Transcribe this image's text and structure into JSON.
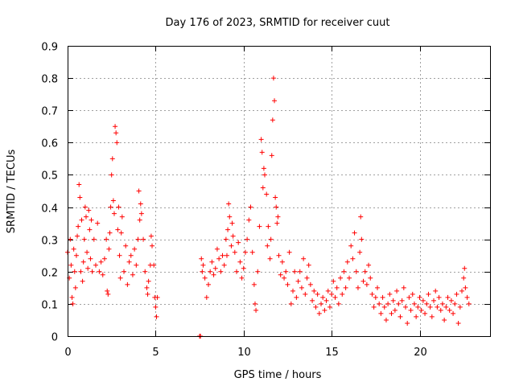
{
  "chart_data": {
    "type": "scatter",
    "title": "Day 176 of 2023, SRMTID for receiver cuut",
    "xlabel": "GPS time / hours",
    "ylabel": "SRMTID / TECUs",
    "xlim": [
      0,
      24
    ],
    "ylim": [
      0,
      0.9
    ],
    "xticks": [
      0,
      5,
      10,
      15,
      20
    ],
    "xtick_labels": [
      "0",
      "5",
      "10",
      "15",
      "20"
    ],
    "yticks": [
      0,
      0.1,
      0.2,
      0.3,
      0.4,
      0.5,
      0.6,
      0.7,
      0.8,
      0.9
    ],
    "ytick_labels": [
      "0",
      "0.1",
      "0.2",
      "0.3",
      "0.4",
      "0.5",
      "0.6",
      "0.7",
      "0.8",
      "0.9"
    ],
    "grid": true,
    "marker": "+",
    "color": "#ff0000",
    "series": [
      {
        "name": "SRMTID",
        "points": [
          [
            0.0,
            0.26
          ],
          [
            0.1,
            0.18
          ],
          [
            0.15,
            0.3
          ],
          [
            0.2,
            0.22
          ],
          [
            0.25,
            0.12
          ],
          [
            0.3,
            0.1
          ],
          [
            0.35,
            0.27
          ],
          [
            0.4,
            0.2
          ],
          [
            0.45,
            0.15
          ],
          [
            0.5,
            0.25
          ],
          [
            0.55,
            0.31
          ],
          [
            0.6,
            0.34
          ],
          [
            0.65,
            0.47
          ],
          [
            0.7,
            0.43
          ],
          [
            0.75,
            0.2
          ],
          [
            0.8,
            0.36
          ],
          [
            0.85,
            0.17
          ],
          [
            0.9,
            0.23
          ],
          [
            0.95,
            0.3
          ],
          [
            1.0,
            0.4
          ],
          [
            1.05,
            0.37
          ],
          [
            1.1,
            0.26
          ],
          [
            1.15,
            0.21
          ],
          [
            1.2,
            0.39
          ],
          [
            1.25,
            0.33
          ],
          [
            1.3,
            0.24
          ],
          [
            1.35,
            0.36
          ],
          [
            1.4,
            0.2
          ],
          [
            1.5,
            0.3
          ],
          [
            1.6,
            0.22
          ],
          [
            1.7,
            0.35
          ],
          [
            1.8,
            0.2
          ],
          [
            1.9,
            0.23
          ],
          [
            2.0,
            0.19
          ],
          [
            2.1,
            0.24
          ],
          [
            2.2,
            0.3
          ],
          [
            2.25,
            0.14
          ],
          [
            2.3,
            0.13
          ],
          [
            2.35,
            0.27
          ],
          [
            2.4,
            0.32
          ],
          [
            2.45,
            0.4
          ],
          [
            2.5,
            0.5
          ],
          [
            2.55,
            0.55
          ],
          [
            2.6,
            0.42
          ],
          [
            2.65,
            0.38
          ],
          [
            2.7,
            0.65
          ],
          [
            2.75,
            0.63
          ],
          [
            2.8,
            0.6
          ],
          [
            2.85,
            0.33
          ],
          [
            2.9,
            0.4
          ],
          [
            2.95,
            0.25
          ],
          [
            3.0,
            0.18
          ],
          [
            3.05,
            0.32
          ],
          [
            3.1,
            0.37
          ],
          [
            3.2,
            0.2
          ],
          [
            3.3,
            0.28
          ],
          [
            3.4,
            0.16
          ],
          [
            3.5,
            0.23
          ],
          [
            3.6,
            0.25
          ],
          [
            3.7,
            0.19
          ],
          [
            3.8,
            0.27
          ],
          [
            3.9,
            0.22
          ],
          [
            4.0,
            0.3
          ],
          [
            4.05,
            0.45
          ],
          [
            4.1,
            0.36
          ],
          [
            4.15,
            0.41
          ],
          [
            4.2,
            0.38
          ],
          [
            4.3,
            0.3
          ],
          [
            4.4,
            0.2
          ],
          [
            4.5,
            0.15
          ],
          [
            4.55,
            0.13
          ],
          [
            4.6,
            0.17
          ],
          [
            4.7,
            0.22
          ],
          [
            4.75,
            0.31
          ],
          [
            4.8,
            0.28
          ],
          [
            4.9,
            0.22
          ],
          [
            4.95,
            0.12
          ],
          [
            5.0,
            0.09
          ],
          [
            5.05,
            0.06
          ],
          [
            5.1,
            0.12
          ],
          [
            7.5,
            0.0
          ],
          [
            7.55,
            0.0
          ],
          [
            7.6,
            0.24
          ],
          [
            7.65,
            0.2
          ],
          [
            7.7,
            0.22
          ],
          [
            7.8,
            0.18
          ],
          [
            7.9,
            0.12
          ],
          [
            8.0,
            0.16
          ],
          [
            8.1,
            0.2
          ],
          [
            8.2,
            0.23
          ],
          [
            8.3,
            0.19
          ],
          [
            8.4,
            0.21
          ],
          [
            8.5,
            0.27
          ],
          [
            8.6,
            0.24
          ],
          [
            8.7,
            0.2
          ],
          [
            8.8,
            0.25
          ],
          [
            8.9,
            0.22
          ],
          [
            9.0,
            0.3
          ],
          [
            9.05,
            0.25
          ],
          [
            9.1,
            0.33
          ],
          [
            9.15,
            0.41
          ],
          [
            9.2,
            0.37
          ],
          [
            9.3,
            0.28
          ],
          [
            9.35,
            0.35
          ],
          [
            9.4,
            0.31
          ],
          [
            9.5,
            0.26
          ],
          [
            9.6,
            0.2
          ],
          [
            9.7,
            0.29
          ],
          [
            9.8,
            0.23
          ],
          [
            9.9,
            0.18
          ],
          [
            10.0,
            0.21
          ],
          [
            10.1,
            0.26
          ],
          [
            10.2,
            0.3
          ],
          [
            10.3,
            0.36
          ],
          [
            10.4,
            0.4
          ],
          [
            10.5,
            0.26
          ],
          [
            10.6,
            0.16
          ],
          [
            10.65,
            0.1
          ],
          [
            10.7,
            0.08
          ],
          [
            10.8,
            0.2
          ],
          [
            10.9,
            0.34
          ],
          [
            11.0,
            0.61
          ],
          [
            11.05,
            0.57
          ],
          [
            11.1,
            0.46
          ],
          [
            11.15,
            0.52
          ],
          [
            11.2,
            0.5
          ],
          [
            11.3,
            0.44
          ],
          [
            11.35,
            0.28
          ],
          [
            11.4,
            0.34
          ],
          [
            11.5,
            0.24
          ],
          [
            11.55,
            0.3
          ],
          [
            11.6,
            0.56
          ],
          [
            11.65,
            0.67
          ],
          [
            11.7,
            0.8
          ],
          [
            11.75,
            0.73
          ],
          [
            11.8,
            0.43
          ],
          [
            11.85,
            0.4
          ],
          [
            11.9,
            0.35
          ],
          [
            11.95,
            0.37
          ],
          [
            12.0,
            0.25
          ],
          [
            12.1,
            0.19
          ],
          [
            12.2,
            0.23
          ],
          [
            12.3,
            0.18
          ],
          [
            12.4,
            0.2
          ],
          [
            12.5,
            0.16
          ],
          [
            12.6,
            0.26
          ],
          [
            12.7,
            0.1
          ],
          [
            12.8,
            0.14
          ],
          [
            12.9,
            0.2
          ],
          [
            13.0,
            0.12
          ],
          [
            13.1,
            0.17
          ],
          [
            13.2,
            0.2
          ],
          [
            13.3,
            0.15
          ],
          [
            13.4,
            0.24
          ],
          [
            13.5,
            0.13
          ],
          [
            13.6,
            0.18
          ],
          [
            13.7,
            0.22
          ],
          [
            13.8,
            0.16
          ],
          [
            13.9,
            0.11
          ],
          [
            14.0,
            0.14
          ],
          [
            14.1,
            0.09
          ],
          [
            14.2,
            0.13
          ],
          [
            14.3,
            0.07
          ],
          [
            14.4,
            0.1
          ],
          [
            14.5,
            0.12
          ],
          [
            14.6,
            0.08
          ],
          [
            14.7,
            0.11
          ],
          [
            14.8,
            0.14
          ],
          [
            14.9,
            0.09
          ],
          [
            15.0,
            0.13
          ],
          [
            15.1,
            0.17
          ],
          [
            15.2,
            0.12
          ],
          [
            15.3,
            0.15
          ],
          [
            15.4,
            0.1
          ],
          [
            15.5,
            0.18
          ],
          [
            15.6,
            0.13
          ],
          [
            15.7,
            0.2
          ],
          [
            15.8,
            0.15
          ],
          [
            15.9,
            0.23
          ],
          [
            16.0,
            0.18
          ],
          [
            16.1,
            0.28
          ],
          [
            16.2,
            0.24
          ],
          [
            16.3,
            0.32
          ],
          [
            16.4,
            0.2
          ],
          [
            16.5,
            0.15
          ],
          [
            16.6,
            0.26
          ],
          [
            16.65,
            0.37
          ],
          [
            16.7,
            0.3
          ],
          [
            16.8,
            0.17
          ],
          [
            16.9,
            0.2
          ],
          [
            17.0,
            0.16
          ],
          [
            17.1,
            0.22
          ],
          [
            17.2,
            0.18
          ],
          [
            17.3,
            0.13
          ],
          [
            17.4,
            0.09
          ],
          [
            17.5,
            0.12
          ],
          [
            17.6,
            0.15
          ],
          [
            17.7,
            0.1
          ],
          [
            17.8,
            0.07
          ],
          [
            17.9,
            0.12
          ],
          [
            18.0,
            0.09
          ],
          [
            18.1,
            0.05
          ],
          [
            18.2,
            0.1
          ],
          [
            18.3,
            0.13
          ],
          [
            18.4,
            0.07
          ],
          [
            18.5,
            0.11
          ],
          [
            18.6,
            0.08
          ],
          [
            18.7,
            0.14
          ],
          [
            18.8,
            0.1
          ],
          [
            18.9,
            0.06
          ],
          [
            19.0,
            0.11
          ],
          [
            19.1,
            0.15
          ],
          [
            19.2,
            0.09
          ],
          [
            19.3,
            0.04
          ],
          [
            19.4,
            0.12
          ],
          [
            19.5,
            0.08
          ],
          [
            19.6,
            0.13
          ],
          [
            19.7,
            0.1
          ],
          [
            19.8,
            0.06
          ],
          [
            19.9,
            0.09
          ],
          [
            20.0,
            0.12
          ],
          [
            20.1,
            0.08
          ],
          [
            20.2,
            0.11
          ],
          [
            20.3,
            0.07
          ],
          [
            20.4,
            0.1
          ],
          [
            20.5,
            0.13
          ],
          [
            20.6,
            0.09
          ],
          [
            20.7,
            0.06
          ],
          [
            20.8,
            0.11
          ],
          [
            20.9,
            0.14
          ],
          [
            21.0,
            0.09
          ],
          [
            21.1,
            0.12
          ],
          [
            21.2,
            0.08
          ],
          [
            21.3,
            0.1
          ],
          [
            21.4,
            0.05
          ],
          [
            21.5,
            0.09
          ],
          [
            21.6,
            0.12
          ],
          [
            21.7,
            0.08
          ],
          [
            21.8,
            0.11
          ],
          [
            21.9,
            0.07
          ],
          [
            22.0,
            0.1
          ],
          [
            22.1,
            0.13
          ],
          [
            22.2,
            0.04
          ],
          [
            22.3,
            0.09
          ],
          [
            22.4,
            0.14
          ],
          [
            22.5,
            0.18
          ],
          [
            22.55,
            0.21
          ],
          [
            22.6,
            0.15
          ],
          [
            22.7,
            0.12
          ],
          [
            22.8,
            0.1
          ]
        ]
      }
    ]
  }
}
